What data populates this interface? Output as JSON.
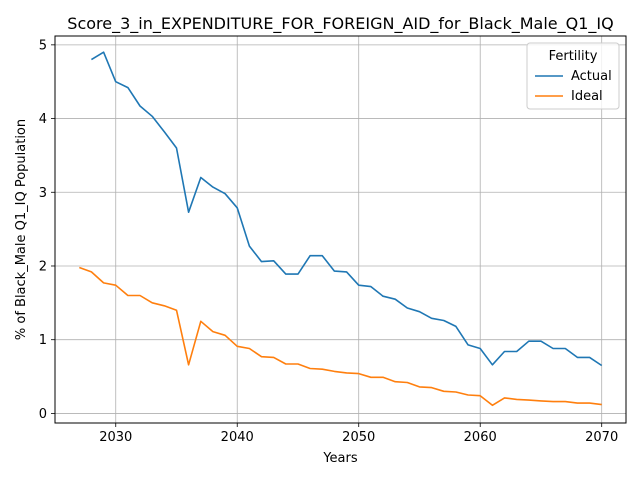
{
  "chart_data": {
    "type": "line",
    "title": "Score_3_in_EXPENDITURE_FOR_FOREIGN_AID_for_Black_Male_Q1_IQ",
    "xlabel": "Years",
    "ylabel": "% of Black_Male Q1_IQ Population",
    "xlim": [
      2025,
      2072
    ],
    "ylim": [
      -0.13,
      5.12
    ],
    "x_ticks": [
      2030,
      2040,
      2050,
      2060,
      2070
    ],
    "y_ticks": [
      0,
      1,
      2,
      3,
      4,
      5
    ],
    "grid": true,
    "legend": {
      "title": "Fertility",
      "placement": "top-right"
    },
    "series": [
      {
        "name": "Actual",
        "color": "#1f77b4",
        "x": [
          2028,
          2029,
          2030,
          2031,
          2032,
          2033,
          2034,
          2035,
          2036,
          2037,
          2038,
          2039,
          2040,
          2041,
          2042,
          2043,
          2044,
          2045,
          2046,
          2047,
          2048,
          2049,
          2050,
          2051,
          2052,
          2053,
          2054,
          2055,
          2056,
          2057,
          2058,
          2059,
          2060,
          2061,
          2062,
          2063,
          2064,
          2065,
          2066,
          2067,
          2068,
          2069,
          2070
        ],
        "values": [
          4.8,
          4.9,
          4.5,
          4.42,
          4.17,
          4.03,
          3.82,
          3.6,
          2.73,
          3.2,
          3.07,
          2.98,
          2.79,
          2.27,
          2.06,
          2.07,
          1.89,
          1.89,
          2.14,
          2.14,
          1.93,
          1.92,
          1.74,
          1.72,
          1.59,
          1.55,
          1.43,
          1.38,
          1.29,
          1.26,
          1.18,
          0.93,
          0.88,
          0.66,
          0.84,
          0.84,
          0.98,
          0.98,
          0.88,
          0.88,
          0.76,
          0.76,
          0.65
        ]
      },
      {
        "name": "Ideal",
        "color": "#ff7f0e",
        "x": [
          2027,
          2028,
          2029,
          2030,
          2031,
          2032,
          2033,
          2034,
          2035,
          2036,
          2037,
          2038,
          2039,
          2040,
          2041,
          2042,
          2043,
          2044,
          2045,
          2046,
          2047,
          2048,
          2049,
          2050,
          2051,
          2052,
          2053,
          2054,
          2055,
          2056,
          2057,
          2058,
          2059,
          2060,
          2061,
          2062,
          2063,
          2064,
          2065,
          2066,
          2067,
          2068,
          2069,
          2070
        ],
        "values": [
          1.98,
          1.92,
          1.77,
          1.74,
          1.6,
          1.6,
          1.5,
          1.46,
          1.4,
          0.66,
          1.25,
          1.11,
          1.06,
          0.91,
          0.88,
          0.77,
          0.76,
          0.67,
          0.67,
          0.61,
          0.6,
          0.57,
          0.55,
          0.54,
          0.49,
          0.49,
          0.43,
          0.42,
          0.36,
          0.35,
          0.3,
          0.29,
          0.25,
          0.24,
          0.11,
          0.21,
          0.19,
          0.18,
          0.17,
          0.16,
          0.16,
          0.14,
          0.14,
          0.12
        ]
      }
    ]
  }
}
